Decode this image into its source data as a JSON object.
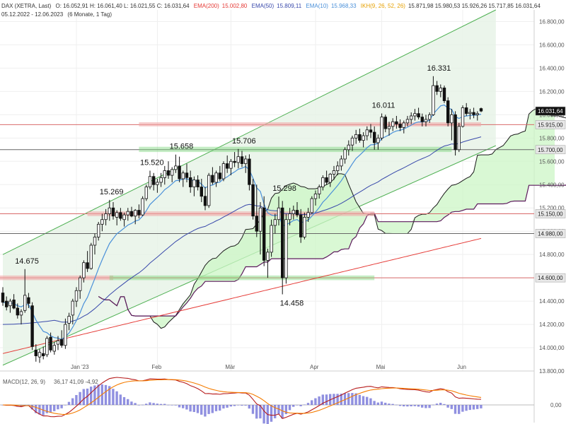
{
  "header": {
    "symbol": "DAX (XETRA, Last)",
    "ohlc": "O: 16.052,91  H: 16.061,40  L: 16.021,55  C: 16.031,64",
    "ema200": "EMA(200)",
    "ema200_value": "15.002,80",
    "ema50": "EMA(50)",
    "ema50_value": "15.809,11",
    "ema10": "EMA(10)",
    "ema10_value": "15.968,33",
    "ikh": "IKH(9, 26, 52, 26)",
    "ikh_values": "15.871,98  15.980,53  15.926,26  15.717,85  16.031,64",
    "range": "05.12.2022 - 12.06.2023",
    "range_note": "(6 Monate, 1 Tag)"
  },
  "macd_label": "MACD(12, 26, 9)",
  "macd_values": "36,17  41,09  -4,92",
  "macd_zero_tick": "0,00",
  "colors": {
    "ema200": "#e53935",
    "ema50": "#3949ab",
    "ema10": "#4a90d9",
    "ikh": "#e6a000",
    "cloud": "#ccf5c6",
    "channel": "#4caf50"
  },
  "chart_data": {
    "type": "candlestick",
    "ylim": [
      13800,
      16900
    ],
    "y_ticks": [
      "13.800,00",
      "14.000,00",
      "14.200,00",
      "14.400,00",
      "14.600,00",
      "14.800,00",
      "15.000,00",
      "15.200,00",
      "15.400,00",
      "15.600,00",
      "15.800,00",
      "16.000,00",
      "16.200,00",
      "16.400,00",
      "16.600,00",
      "16.800,00"
    ],
    "y_tick_values": [
      13800,
      14000,
      14200,
      14400,
      14600,
      14800,
      15000,
      15200,
      15400,
      15600,
      15800,
      16000,
      16200,
      16400,
      16600,
      16800
    ],
    "x_labels": [
      {
        "label": "Jan '23",
        "index": 20
      },
      {
        "label": "Feb",
        "index": 42
      },
      {
        "label": "Mär",
        "index": 62
      },
      {
        "label": "Apr",
        "index": 85
      },
      {
        "label": "Mai",
        "index": 103
      },
      {
        "label": "Jun",
        "index": 125
      }
    ],
    "price_tags": [
      {
        "label": "16.031,64",
        "value": 16031.64,
        "style": "last"
      },
      {
        "label": "15.915,00",
        "value": 15915,
        "style": "plain"
      },
      {
        "label": "15.700,00",
        "value": 15700,
        "style": "plain"
      },
      {
        "label": "15.150,00",
        "value": 15150,
        "style": "plain"
      },
      {
        "label": "14.980,00",
        "value": 14980,
        "style": "plain"
      },
      {
        "label": "14.600,00",
        "value": 14600,
        "style": "plain"
      }
    ],
    "horizontal_lines": [
      15915,
      15700,
      15150,
      14980,
      14600
    ],
    "annotations": [
      {
        "text": "14.675",
        "index": 6,
        "value": 14675
      },
      {
        "text": "15.269",
        "index": 29,
        "value": 15269
      },
      {
        "text": "15.520",
        "index": 40,
        "value": 15520
      },
      {
        "text": "15.658",
        "index": 48,
        "value": 15658
      },
      {
        "text": "15.706",
        "index": 65,
        "value": 15706
      },
      {
        "text": "15.298",
        "index": 76,
        "value": 15298
      },
      {
        "text": "14.458",
        "index": 78,
        "value": 14458
      },
      {
        "text": "16.011",
        "index": 103,
        "value": 16011
      },
      {
        "text": "16.331",
        "index": 118,
        "value": 16331
      }
    ],
    "candles": [
      [
        14470,
        14520,
        14360,
        14390
      ],
      [
        14400,
        14440,
        14320,
        14350
      ],
      [
        14360,
        14420,
        14300,
        14400
      ],
      [
        14410,
        14460,
        14330,
        14340
      ],
      [
        14340,
        14380,
        14250,
        14280
      ],
      [
        14280,
        14330,
        14200,
        14310
      ],
      [
        14320,
        14675,
        14300,
        14450
      ],
      [
        14430,
        14470,
        14340,
        14380
      ],
      [
        14360,
        14390,
        13980,
        14010
      ],
      [
        13980,
        14030,
        13880,
        13930
      ],
      [
        13920,
        13990,
        13870,
        13960
      ],
      [
        13950,
        14010,
        13900,
        13930
      ],
      [
        13940,
        14100,
        13920,
        14080
      ],
      [
        14090,
        14130,
        13960,
        13980
      ],
      [
        13970,
        14050,
        13940,
        14020
      ],
      [
        14030,
        14100,
        13980,
        14060
      ],
      [
        14070,
        14150,
        14000,
        14020
      ],
      [
        14020,
        14250,
        13990,
        14200
      ],
      [
        14210,
        14300,
        14150,
        14270
      ],
      [
        14280,
        14420,
        14200,
        14400
      ],
      [
        14400,
        14520,
        14350,
        14490
      ],
      [
        14490,
        14620,
        14420,
        14600
      ],
      [
        14600,
        14750,
        14560,
        14730
      ],
      [
        14730,
        14830,
        14650,
        14680
      ],
      [
        14680,
        14900,
        14670,
        14880
      ],
      [
        14880,
        14980,
        14800,
        14950
      ],
      [
        14950,
        15080,
        14920,
        15060
      ],
      [
        15060,
        15150,
        15000,
        15100
      ],
      [
        15100,
        15190,
        15050,
        15150
      ],
      [
        15150,
        15269,
        15090,
        15200
      ],
      [
        15200,
        15250,
        15100,
        15130
      ],
      [
        15120,
        15180,
        15050,
        15160
      ],
      [
        15160,
        15200,
        15090,
        15110
      ],
      [
        15100,
        15160,
        15040,
        15140
      ],
      [
        15140,
        15200,
        15090,
        15170
      ],
      [
        15170,
        15210,
        15120,
        15130
      ],
      [
        15130,
        15190,
        15060,
        15180
      ],
      [
        15180,
        15230,
        15110,
        15140
      ],
      [
        15140,
        15300,
        15130,
        15280
      ],
      [
        15280,
        15400,
        15260,
        15380
      ],
      [
        15380,
        15520,
        15360,
        15470
      ],
      [
        15470,
        15500,
        15350,
        15400
      ],
      [
        15400,
        15450,
        15330,
        15420
      ],
      [
        15420,
        15500,
        15380,
        15460
      ],
      [
        15460,
        15560,
        15400,
        15520
      ],
      [
        15520,
        15600,
        15450,
        15480
      ],
      [
        15480,
        15550,
        15420,
        15530
      ],
      [
        15530,
        15658,
        15500,
        15560
      ],
      [
        15560,
        15640,
        15420,
        15450
      ],
      [
        15450,
        15520,
        15380,
        15500
      ],
      [
        15500,
        15580,
        15420,
        15460
      ],
      [
        15460,
        15520,
        15330,
        15380
      ],
      [
        15380,
        15470,
        15300,
        15440
      ],
      [
        15440,
        15480,
        15350,
        15380
      ],
      [
        15380,
        15450,
        15250,
        15300
      ],
      [
        15300,
        15380,
        15180,
        15220
      ],
      [
        15220,
        15500,
        15200,
        15480
      ],
      [
        15480,
        15550,
        15400,
        15420
      ],
      [
        15420,
        15520,
        15380,
        15500
      ],
      [
        15500,
        15560,
        15430,
        15450
      ],
      [
        15450,
        15600,
        15430,
        15580
      ],
      [
        15580,
        15650,
        15500,
        15540
      ],
      [
        15540,
        15620,
        15480,
        15600
      ],
      [
        15600,
        15680,
        15550,
        15590
      ],
      [
        15590,
        15706,
        15540,
        15640
      ],
      [
        15640,
        15690,
        15550,
        15580
      ],
      [
        15580,
        15650,
        15500,
        15620
      ],
      [
        15620,
        15660,
        15350,
        15400
      ],
      [
        15400,
        15450,
        15100,
        15130
      ],
      [
        15130,
        15400,
        14950,
        15000
      ],
      [
        15000,
        15250,
        14800,
        15200
      ],
      [
        15200,
        15300,
        14700,
        14750
      ],
      [
        14750,
        14850,
        14600,
        14820
      ],
      [
        14820,
        15100,
        14780,
        15050
      ],
      [
        15050,
        15150,
        14980,
        15100
      ],
      [
        15100,
        15298,
        15050,
        15200
      ],
      [
        15200,
        15260,
        14458,
        14600
      ],
      [
        14600,
        15150,
        14550,
        15100
      ],
      [
        15100,
        15200,
        15050,
        15150
      ],
      [
        15150,
        15220,
        15100,
        15180
      ],
      [
        15180,
        15250,
        15120,
        15140
      ],
      [
        15140,
        15190,
        14900,
        14950
      ],
      [
        14950,
        15160,
        14930,
        15120
      ],
      [
        15120,
        15200,
        15080,
        15160
      ],
      [
        15160,
        15300,
        15150,
        15280
      ],
      [
        15280,
        15350,
        15220,
        15320
      ],
      [
        15320,
        15400,
        15280,
        15380
      ],
      [
        15380,
        15480,
        15350,
        15460
      ],
      [
        15460,
        15520,
        15400,
        15420
      ],
      [
        15420,
        15500,
        15380,
        15490
      ],
      [
        15490,
        15560,
        15440,
        15520
      ],
      [
        15520,
        15600,
        15480,
        15560
      ],
      [
        15560,
        15650,
        15520,
        15620
      ],
      [
        15620,
        15720,
        15580,
        15700
      ],
      [
        15700,
        15780,
        15650,
        15740
      ],
      [
        15740,
        15820,
        15690,
        15800
      ],
      [
        15800,
        15870,
        15750,
        15830
      ],
      [
        15830,
        15880,
        15760,
        15780
      ],
      [
        15780,
        15850,
        15720,
        15820
      ],
      [
        15820,
        15900,
        15780,
        15870
      ],
      [
        15870,
        15920,
        15800,
        15850
      ],
      [
        15850,
        15900,
        15700,
        15760
      ],
      [
        15760,
        15830,
        15700,
        15800
      ],
      [
        15800,
        16011,
        15780,
        15980
      ],
      [
        15980,
        16000,
        15850,
        15880
      ],
      [
        15880,
        15940,
        15820,
        15900
      ],
      [
        15900,
        15970,
        15860,
        15940
      ],
      [
        15940,
        15990,
        15880,
        15920
      ],
      [
        15920,
        15960,
        15860,
        15890
      ],
      [
        15890,
        15950,
        15840,
        15930
      ],
      [
        15930,
        15990,
        15900,
        15960
      ],
      [
        15960,
        16020,
        15920,
        15990
      ],
      [
        15990,
        16050,
        15950,
        16010
      ],
      [
        16010,
        16060,
        15960,
        15980
      ],
      [
        15980,
        16010,
        15900,
        15940
      ],
      [
        15940,
        16000,
        15900,
        15960
      ],
      [
        15960,
        16020,
        15930,
        16000
      ],
      [
        16000,
        16331,
        15990,
        16250
      ],
      [
        16250,
        16290,
        16170,
        16200
      ],
      [
        16200,
        16260,
        16150,
        16230
      ],
      [
        16230,
        16250,
        16100,
        16120
      ],
      [
        16120,
        16150,
        15900,
        15930
      ],
      [
        15930,
        16050,
        15780,
        16000
      ],
      [
        16000,
        16030,
        15650,
        15700
      ],
      [
        15700,
        15930,
        15680,
        15900
      ],
      [
        15900,
        16080,
        15890,
        16060
      ],
      [
        16060,
        16100,
        15990,
        16010
      ],
      [
        16010,
        16050,
        15960,
        16020
      ],
      [
        16020,
        16060,
        15970,
        16000
      ],
      [
        16000,
        16030,
        15950,
        16010
      ],
      [
        16052.91,
        16061.4,
        16021.55,
        16031.64
      ]
    ]
  }
}
